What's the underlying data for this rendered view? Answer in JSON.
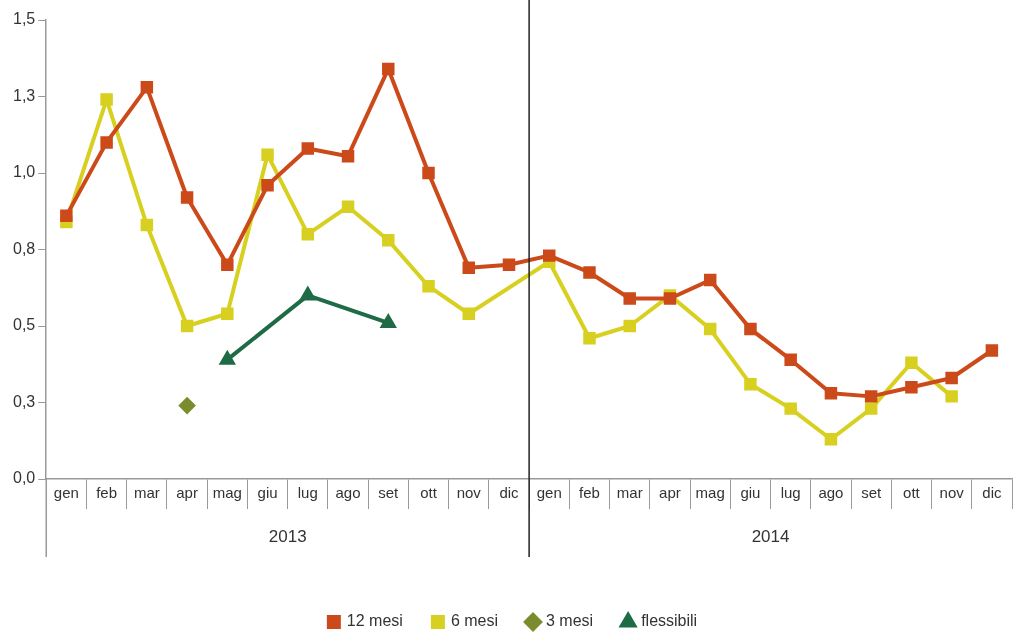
{
  "chart_data": {
    "type": "line",
    "categories": [
      "gen",
      "feb",
      "mar",
      "apr",
      "mag",
      "giu",
      "lug",
      "ago",
      "set",
      "ott",
      "nov",
      "dic",
      "gen",
      "feb",
      "mar",
      "apr",
      "mag",
      "giu",
      "lug",
      "ago",
      "set",
      "ott",
      "nov",
      "dic"
    ],
    "series": [
      {
        "name": "flessibili",
        "color": "#1e6b45",
        "marker": "triangle",
        "values": [
          null,
          null,
          null,
          null,
          0.39,
          null,
          0.6,
          null,
          0.51,
          null,
          null,
          null,
          null,
          null,
          null,
          null,
          null,
          null,
          null,
          null,
          null,
          null,
          null,
          null
        ]
      },
      {
        "name": "3 mesi",
        "color": "#7a8c2e",
        "marker": "diamond",
        "values": [
          null,
          null,
          null,
          0.24,
          null,
          null,
          null,
          null,
          null,
          null,
          null,
          null,
          null,
          null,
          null,
          null,
          null,
          null,
          null,
          null,
          null,
          null,
          null,
          null
        ]
      },
      {
        "name": "6 mesi",
        "color": "#d8d020",
        "marker": "square",
        "values": [
          0.84,
          1.24,
          0.83,
          0.5,
          0.54,
          1.06,
          0.8,
          0.89,
          0.78,
          0.63,
          0.54,
          null,
          0.71,
          0.46,
          0.5,
          0.6,
          0.49,
          0.31,
          0.23,
          0.13,
          0.23,
          0.38,
          0.27,
          null
        ]
      },
      {
        "name": "12 mesi",
        "color": "#cc4a1a",
        "marker": "square",
        "values": [
          0.86,
          1.1,
          1.28,
          0.92,
          0.7,
          0.96,
          1.08,
          1.055,
          1.34,
          1.0,
          0.69,
          0.7,
          0.73,
          0.675,
          0.59,
          0.59,
          0.65,
          0.49,
          0.39,
          0.28,
          0.27,
          0.3,
          0.33,
          0.42
        ]
      }
    ],
    "ylim": [
      0,
      1.5
    ],
    "yticks": [
      {
        "value": 0,
        "label": "0,0"
      },
      {
        "value": 0.25,
        "label": "0,3"
      },
      {
        "value": 0.5,
        "label": "0,5"
      },
      {
        "value": 0.75,
        "label": "0,8"
      },
      {
        "value": 1,
        "label": "1,0"
      },
      {
        "value": 1.25,
        "label": "1,3"
      },
      {
        "value": 1.5,
        "label": "1,5"
      }
    ],
    "annotations": [
      "2013",
      "2014"
    ],
    "grid": false,
    "legend": "bottom",
    "line_style": "solid"
  }
}
